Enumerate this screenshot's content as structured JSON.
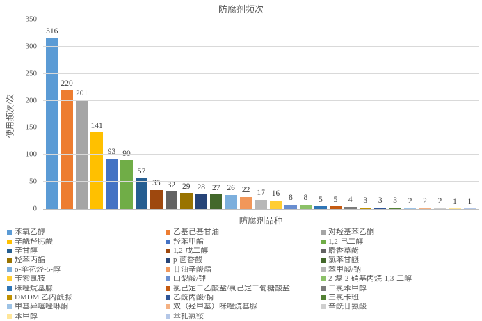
{
  "chart_data": {
    "type": "bar",
    "title": "防腐剂频次",
    "xlabel": "防腐剂品种",
    "ylabel": "使用频次/次",
    "ylim": [
      0,
      350
    ],
    "yticks": [
      0,
      50,
      100,
      150,
      200,
      250,
      300,
      350
    ],
    "grid": true,
    "legend_position": "bottom",
    "legend_columns": 3,
    "series": [
      {
        "name": "苯氧乙醇",
        "value": 316,
        "color": "#5B9BD5"
      },
      {
        "name": "乙基己基甘油",
        "value": 220,
        "color": "#ED7D31"
      },
      {
        "name": "对羟基苯乙酮",
        "value": 201,
        "color": "#A5A5A5"
      },
      {
        "name": "辛酰羟肟酸",
        "value": 141,
        "color": "#FFC000"
      },
      {
        "name": "羟苯甲酯",
        "value": 93,
        "color": "#4472C4"
      },
      {
        "name": "1,2-己二醇",
        "value": 90,
        "color": "#70AD47"
      },
      {
        "name": "辛甘醇",
        "value": 57,
        "color": "#255E91"
      },
      {
        "name": "1,2-戊二醇",
        "value": 35,
        "color": "#9E480E"
      },
      {
        "name": "麝香草酚",
        "value": 32,
        "color": "#636363"
      },
      {
        "name": "羟苯丙酯",
        "value": 29,
        "color": "#997300"
      },
      {
        "name": "p-茴香酸",
        "value": 28,
        "color": "#264478"
      },
      {
        "name": "氯苯甘醚",
        "value": 27,
        "color": "#43682B"
      },
      {
        "name": "o-伞花烃-5-醇",
        "value": 26,
        "color": "#7CAFDD"
      },
      {
        "name": "甘油辛酸酯",
        "value": 22,
        "color": "#F1975A"
      },
      {
        "name": "苯甲酸/钠",
        "value": 17,
        "color": "#B7B7B7"
      },
      {
        "name": "苄索氯铵",
        "value": 16,
        "color": "#FFCD33"
      },
      {
        "name": "山梨酸/钾",
        "value": 8,
        "color": "#698ED0"
      },
      {
        "name": "2-溴-2-硝基丙烷-1,3-二醇",
        "value": 8,
        "color": "#8CC168"
      },
      {
        "name": "咪唑烷基脲",
        "value": 5,
        "color": "#2E75B6"
      },
      {
        "name": "氯己定二乙酸盐/氯己定二葡糖酸盐",
        "value": 5,
        "color": "#C55A11"
      },
      {
        "name": "二氯苯甲醇",
        "value": 4,
        "color": "#7B7B7B"
      },
      {
        "name": "DMDM 乙内酰脲",
        "value": 3,
        "color": "#BF9000"
      },
      {
        "name": "乙酰丙酸/钠",
        "value": 3,
        "color": "#2F5597"
      },
      {
        "name": "三氯卡班",
        "value": 3,
        "color": "#538135"
      },
      {
        "name": "甲基异噻唑啉酮",
        "value": 2,
        "color": "#9DC3E6"
      },
      {
        "name": "双（羟甲基）咪唑烷基脲",
        "value": 2,
        "color": "#F4B183"
      },
      {
        "name": "辛酰甘氨酸",
        "value": 2,
        "color": "#CFCFCF"
      },
      {
        "name": "苯甲醇",
        "value": 1,
        "color": "#FFE699"
      },
      {
        "name": "苯扎氯铵",
        "value": 1,
        "color": "#B4C7E7"
      }
    ]
  },
  "colors": {
    "title_text": "#595959",
    "axis_text": "#595959",
    "data_label_text": "#404040",
    "gridline": "#D9D9D9",
    "axis_line": "#BFBFBF",
    "legend_text": "#595959",
    "background": "#FFFFFF"
  }
}
